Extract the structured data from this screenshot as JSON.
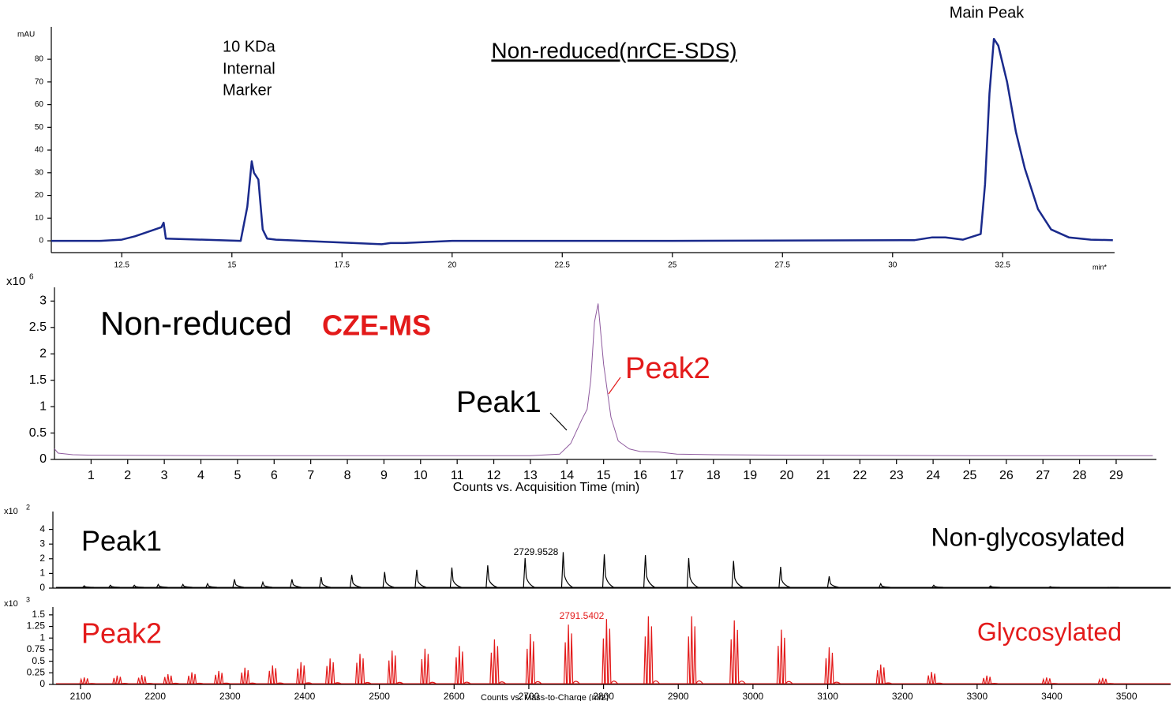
{
  "chart_data": [
    {
      "type": "line",
      "title": "Non-reduced(nrCE-SDS)",
      "y_unit": "mAU",
      "x_unit": "min*",
      "annotations": [
        "10 KDa",
        "Internal",
        "Marker",
        "Main Peak"
      ],
      "x": [
        10.9,
        12.0,
        12.5,
        12.8,
        13.1,
        13.4,
        13.45,
        13.5,
        15.2,
        15.35,
        15.45,
        15.5,
        15.6,
        15.7,
        15.8,
        16,
        18.4,
        18.6,
        18.7,
        18.9,
        20,
        25,
        30.5,
        30.9,
        31.2,
        31.6,
        32.0,
        32.1,
        32.2,
        32.3,
        32.4,
        32.6,
        32.8,
        33.0,
        33.3,
        33.6,
        34.0,
        34.5,
        35.0
      ],
      "series": [
        {
          "color": "#1a2a8c",
          "values": [
            0,
            0,
            0.5,
            2,
            4,
            6,
            8,
            1,
            0,
            15,
            35,
            30,
            27,
            5,
            1,
            0.5,
            -1.5,
            -1,
            -1,
            -1,
            0,
            0,
            0.3,
            1.5,
            1.5,
            0.5,
            3,
            25,
            65,
            89,
            86,
            70,
            48,
            32,
            14,
            5,
            1.5,
            0.5,
            0.3
          ]
        }
      ],
      "xlim": [
        10.9,
        35.04
      ],
      "ylim": [
        -5.2,
        92.9
      ],
      "xticks": [
        12.5,
        15,
        17.5,
        20,
        22.5,
        25,
        27.5,
        30,
        32.5
      ],
      "yticks": [
        0,
        10,
        20,
        30,
        40,
        50,
        60,
        70,
        80
      ]
    },
    {
      "type": "line",
      "title": "Non-reduced",
      "title_highlight": "CZE-MS",
      "x_label": "Counts vs. Acquisition Time (min)",
      "y_scale": "x10",
      "y_scale_exp": "6",
      "annotations": [
        "Peak1",
        "Peak2"
      ],
      "x": [
        0,
        0.1,
        0.5,
        1,
        5,
        10,
        13,
        13.8,
        14.1,
        14.4,
        14.55,
        14.65,
        14.75,
        14.85,
        15.0,
        15.2,
        15.4,
        15.7,
        16,
        16.5,
        17,
        18,
        20,
        25,
        30
      ],
      "series": [
        {
          "color": "#8e5a9e",
          "values": [
            0.2,
            0.12,
            0.09,
            0.08,
            0.07,
            0.07,
            0.07,
            0.1,
            0.3,
            0.75,
            0.95,
            1.5,
            2.6,
            2.95,
            1.8,
            0.8,
            0.35,
            0.2,
            0.15,
            0.14,
            0.1,
            0.09,
            0.08,
            0.07,
            0.07
          ]
        }
      ],
      "xlim": [
        0,
        30.1
      ],
      "ylim": [
        0,
        3.2
      ],
      "xticks": [
        1,
        2,
        3,
        4,
        5,
        6,
        7,
        8,
        9,
        10,
        11,
        12,
        13,
        14,
        15,
        16,
        17,
        18,
        19,
        20,
        21,
        22,
        23,
        24,
        25,
        26,
        27,
        28,
        29
      ],
      "yticks": [
        0,
        0.5,
        1,
        1.5,
        2,
        2.5,
        3
      ]
    },
    {
      "type": "spectrum",
      "label": "Peak1",
      "title": "Non-glycosylated",
      "y_scale": "x10",
      "y_scale_exp": "2",
      "peak_label": "2729.9528",
      "x": [
        2105,
        2140,
        2172,
        2204,
        2237,
        2270,
        2306,
        2344,
        2383,
        2422,
        2463,
        2507,
        2550,
        2597,
        2645,
        2695,
        2746,
        2801,
        2856,
        2914,
        2974,
        3037,
        3102,
        3171,
        3242,
        3318,
        3398,
        3477
      ],
      "series": [
        {
          "color": "#000000",
          "values": [
            0.16,
            0.2,
            0.2,
            0.25,
            0.25,
            0.3,
            0.6,
            0.4,
            0.6,
            0.75,
            0.9,
            1.1,
            1.25,
            1.4,
            1.55,
            2.05,
            2.45,
            2.3,
            2.25,
            2.05,
            1.85,
            1.45,
            0.8,
            0.3,
            0.2,
            0.15,
            0.1,
            0.05
          ]
        }
      ],
      "xlim": [
        2063,
        3559
      ],
      "ylim": [
        0,
        5
      ],
      "yticks": [
        0,
        1,
        2,
        3,
        4
      ]
    },
    {
      "type": "spectrum",
      "label": "Peak2",
      "title": "Glycosylated",
      "y_scale": "x10",
      "y_scale_exp": "3",
      "peak_label": "2791.5402",
      "x_label": "Counts vs. Mass-to-Charge (m/z)",
      "x": [
        2105,
        2149,
        2182,
        2217,
        2249,
        2285,
        2320,
        2357,
        2395,
        2434,
        2474,
        2517,
        2561,
        2607,
        2654,
        2702,
        2753,
        2804,
        2860,
        2918,
        2975,
        3038,
        3102,
        3171,
        3239,
        3313,
        3393,
        3468
      ],
      "series": [
        {
          "color": "#e31a1a",
          "values": [
            0.15,
            0.19,
            0.2,
            0.22,
            0.26,
            0.29,
            0.36,
            0.41,
            0.48,
            0.56,
            0.66,
            0.73,
            0.77,
            0.83,
            0.97,
            1.09,
            1.29,
            1.41,
            1.47,
            1.47,
            1.38,
            1.18,
            0.8,
            0.43,
            0.27,
            0.19,
            0.15,
            0.14
          ]
        }
      ],
      "xlim": [
        2063,
        3559
      ],
      "ylim": [
        0,
        1.6
      ],
      "xticks": [
        2100,
        2200,
        2300,
        2400,
        2500,
        2600,
        2700,
        2800,
        2900,
        3000,
        3100,
        3200,
        3300,
        3400,
        3500
      ],
      "yticks": [
        0,
        0.25,
        0.5,
        0.75,
        1,
        1.25,
        1.5
      ]
    }
  ]
}
